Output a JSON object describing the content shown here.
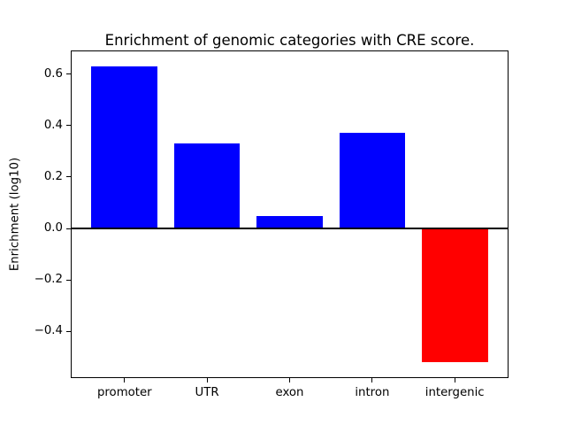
{
  "chart_data": {
    "type": "bar",
    "title": "Enrichment of genomic categories with CRE score.",
    "xlabel": "",
    "ylabel": "Enrichment (log10)",
    "categories": [
      "promoter",
      "UTR",
      "exon",
      "intron",
      "intergenic"
    ],
    "values": [
      0.63,
      0.33,
      0.05,
      0.37,
      -0.52
    ],
    "bar_colors": [
      "#0000ff",
      "#0000ff",
      "#0000ff",
      "#0000ff",
      "#ff0000"
    ],
    "bar_width": 0.8,
    "yticks": [
      0.6,
      0.4,
      0.2,
      0.0,
      -0.2,
      -0.4
    ],
    "ytick_labels": [
      "0.6",
      "0.4",
      "0.2",
      "0.0",
      "−0.2",
      "−0.4"
    ],
    "ylim": [
      -0.578,
      0.688
    ],
    "xlim": [
      -0.64,
      4.64
    ],
    "zero_line": true,
    "grid": false,
    "legend": null,
    "background_color": "#ffffff",
    "frame_color": "#000000"
  }
}
